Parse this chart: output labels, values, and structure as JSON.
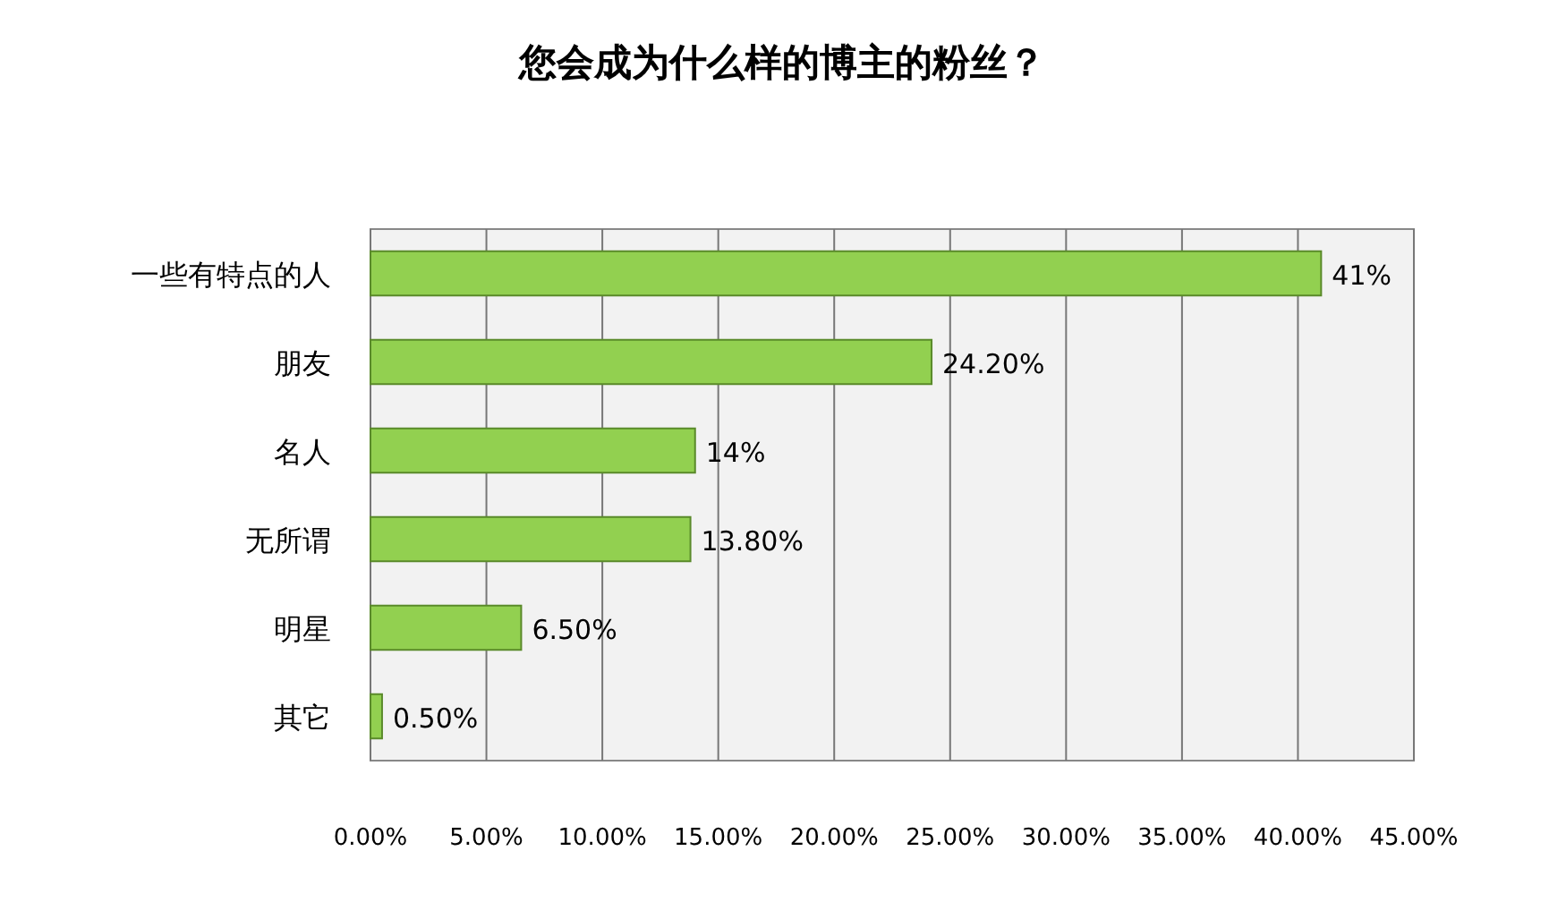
{
  "chart_data": {
    "type": "bar",
    "orientation": "horizontal",
    "title": "您会成为什么样的博主的粉丝？",
    "categories": [
      "一些有特点的人",
      "朋友",
      "名人",
      "无所谓",
      "明星",
      "其它"
    ],
    "values": [
      41,
      24.2,
      14,
      13.8,
      6.5,
      0.5
    ],
    "value_labels": [
      "41%",
      "24.20%",
      "14%",
      "13.80%",
      "6.50%",
      "0.50%"
    ],
    "color": "#92d050",
    "xlim": [
      0,
      45
    ],
    "xticks": [
      {
        "value": 0,
        "label": "0.00%"
      },
      {
        "value": 5,
        "label": "5.00%"
      },
      {
        "value": 10,
        "label": "10.00%"
      },
      {
        "value": 15,
        "label": "15.00%"
      },
      {
        "value": 20,
        "label": "20.00%"
      },
      {
        "value": 25,
        "label": "25.00%"
      },
      {
        "value": 30,
        "label": "30.00%"
      },
      {
        "value": 35,
        "label": "35.00%"
      },
      {
        "value": 40,
        "label": "40.00%"
      },
      {
        "value": 45,
        "label": "45.00%"
      }
    ],
    "grid": "x"
  }
}
